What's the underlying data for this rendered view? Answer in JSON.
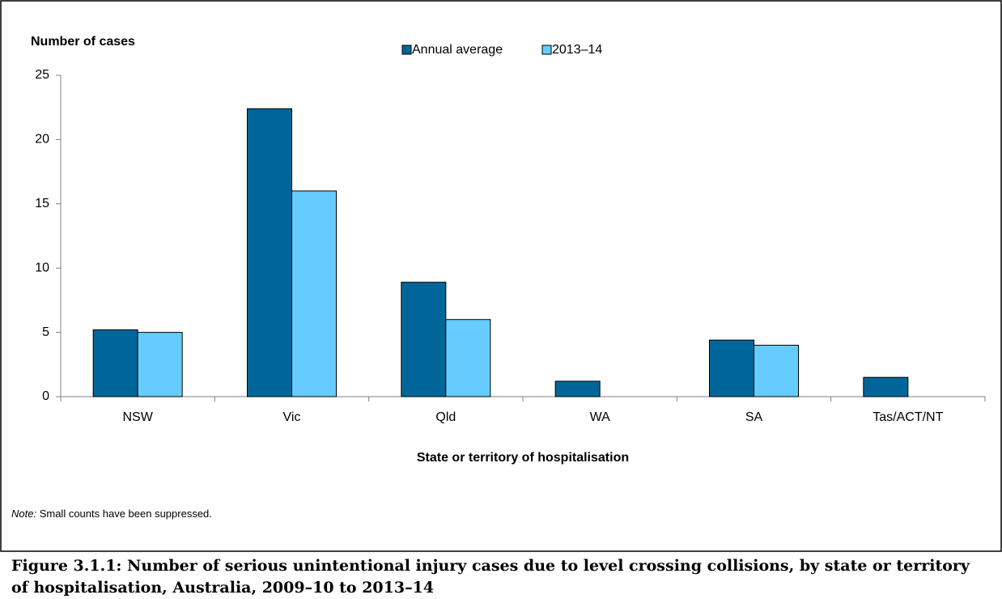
{
  "chart_data": {
    "type": "bar",
    "y_label": "Number of cases",
    "x_label": "State or territory of hospitalisation",
    "note_label": "Note:",
    "note": "Small counts have been suppressed.",
    "caption": "Figure 3.1.1: Number of serious unintentional injury cases due to level crossing collisions, by state or territory of hospitalisation, Australia, 2009–10 to 2013–14",
    "categories": [
      "NSW",
      "Vic",
      "Qld",
      "WA",
      "SA",
      "Tas/ACT/NT"
    ],
    "series": [
      {
        "name": "Annual average",
        "color": "#006699",
        "values": [
          5.2,
          22.4,
          8.9,
          1.2,
          4.4,
          1.5
        ]
      },
      {
        "name": "2013–14",
        "color": "#66ccff",
        "values": [
          5,
          16,
          6,
          null,
          4,
          null
        ]
      }
    ],
    "ylim": [
      0,
      25
    ],
    "yticks": [
      0,
      5,
      10,
      15,
      20,
      25
    ],
    "grid": false,
    "legend": "top"
  }
}
